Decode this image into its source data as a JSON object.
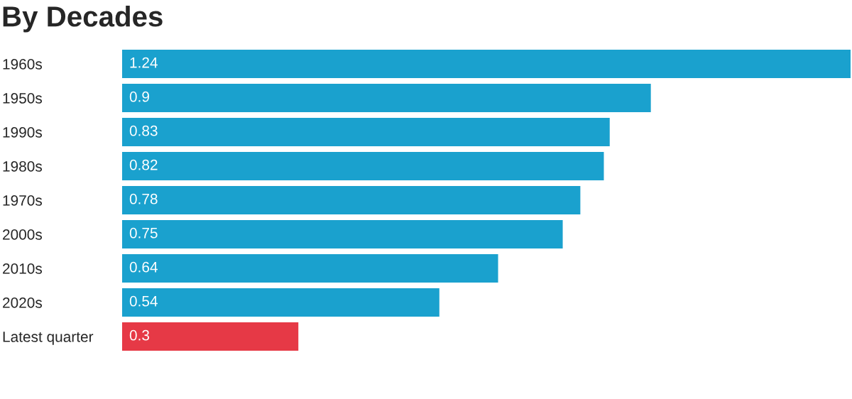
{
  "chart_data": {
    "type": "bar",
    "orientation": "horizontal",
    "title": "By Decades",
    "categories": [
      "1960s",
      "1950s",
      "1990s",
      "1980s",
      "1970s",
      "2000s",
      "2010s",
      "2020s",
      "Latest quarter"
    ],
    "values": [
      1.24,
      0.9,
      0.83,
      0.82,
      0.78,
      0.75,
      0.64,
      0.54,
      0.3
    ],
    "colors": [
      "#1aa1ce",
      "#1aa1ce",
      "#1aa1ce",
      "#1aa1ce",
      "#1aa1ce",
      "#1aa1ce",
      "#1aa1ce",
      "#1aa1ce",
      "#e63946"
    ],
    "data_labels": true,
    "tick_labels": "y"
  }
}
